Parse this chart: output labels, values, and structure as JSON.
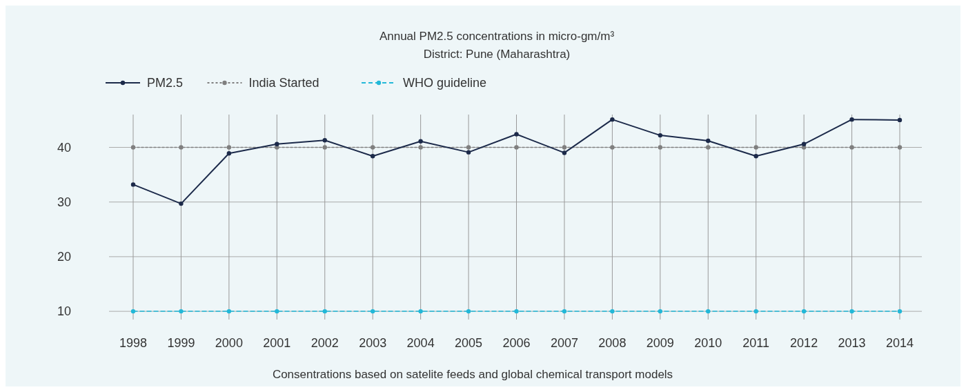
{
  "chart_data": {
    "type": "line",
    "title": "Annual PM2.5 concentrations in micro-gm/m³",
    "subtitle": "District: Pune (Maharashtra)",
    "categories": [
      "1998",
      "1999",
      "2000",
      "2001",
      "2002",
      "2003",
      "2004",
      "2005",
      "2006",
      "2007",
      "2008",
      "2009",
      "2010",
      "2011",
      "2012",
      "2013",
      "2014"
    ],
    "series": [
      {
        "name": "PM2.5",
        "color": "#1c2a4a",
        "line_style": "solid",
        "values": [
          33.2,
          29.7,
          38.9,
          40.6,
          41.3,
          38.4,
          41.1,
          39.1,
          42.4,
          39.0,
          45.1,
          42.2,
          41.2,
          38.4,
          40.6,
          45.1,
          45.0
        ]
      },
      {
        "name": "India Started",
        "color": "#7f7f7f",
        "line_style": "dotted",
        "values": [
          40,
          40,
          40,
          40,
          40,
          40,
          40,
          40,
          40,
          40,
          40,
          40,
          40,
          40,
          40,
          40,
          40
        ]
      },
      {
        "name": "WHO guideline",
        "color": "#22b8d8",
        "line_style": "dashed",
        "values": [
          10,
          10,
          10,
          10,
          10,
          10,
          10,
          10,
          10,
          10,
          10,
          10,
          10,
          10,
          10,
          10,
          10
        ]
      }
    ],
    "ylim": [
      8.5,
      46
    ],
    "yticks": [
      10,
      20,
      30,
      40
    ],
    "grid": true,
    "legend": "top left",
    "marker": "circle",
    "annotations": [
      "Consentrations based on satelite feeds and global chemical transport models"
    ]
  }
}
